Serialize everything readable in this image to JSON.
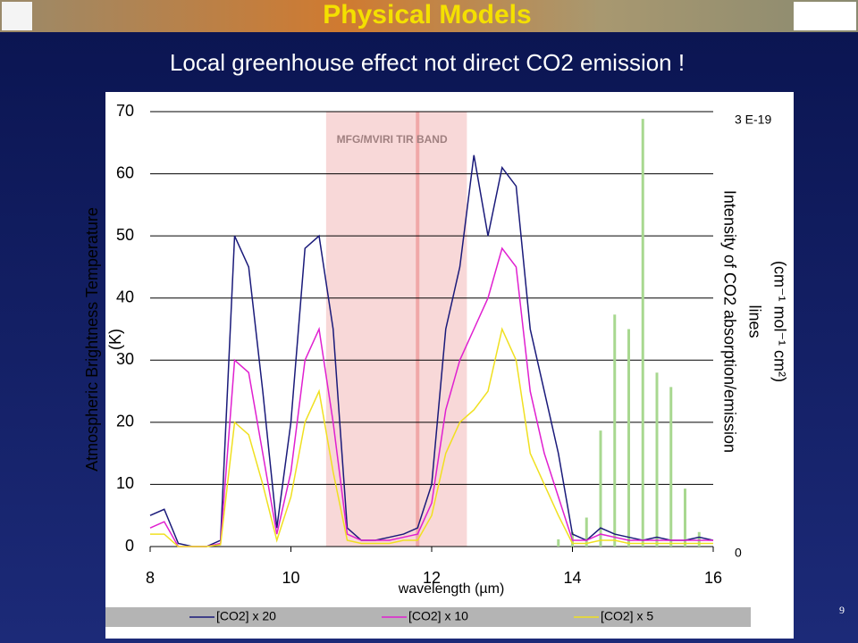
{
  "slide": {
    "title": "Physical Models",
    "subtitle": "Local greenhouse effect not direct CO2 emission !",
    "page": "9"
  },
  "chart_data": {
    "type": "line",
    "xlabel": "wavelength (µm)",
    "ylabel": [
      "Atmospheric  Brightness Temperature",
      "(K)"
    ],
    "y2label": [
      "Intensity of CO2  absorption/emission",
      "lines",
      "(cm⁻¹ mol⁻¹ cm²)"
    ],
    "xlim": [
      8,
      16
    ],
    "xticks": [
      8,
      10,
      12,
      14,
      16
    ],
    "ylim": [
      0,
      70
    ],
    "yticks": [
      0,
      10,
      20,
      30,
      40,
      50,
      60,
      70
    ],
    "y2lim": [
      0,
      3e-19
    ],
    "y2ticks": [
      0,
      {
        "value": 3e-19,
        "label": "3 E-19"
      }
    ],
    "grid": true,
    "band": {
      "label": "MFG/MVIRI TIR BAND",
      "range": [
        10.5,
        12.5
      ],
      "line": 11.8
    },
    "x": [
      8.0,
      8.2,
      8.4,
      8.6,
      8.8,
      9.0,
      9.2,
      9.4,
      9.6,
      9.8,
      10.0,
      10.2,
      10.4,
      10.6,
      10.8,
      11.0,
      11.2,
      11.4,
      11.6,
      11.8,
      12.0,
      12.2,
      12.4,
      12.6,
      12.8,
      13.0,
      13.2,
      13.4,
      13.6,
      13.8,
      14.0,
      14.2,
      14.4,
      14.6,
      14.8,
      15.0,
      15.2,
      15.4,
      15.6,
      15.8,
      16.0
    ],
    "series": [
      {
        "name": "[CO2] x 20",
        "color": "#1a1a7a",
        "values": [
          5,
          6,
          0.5,
          0,
          0,
          1,
          50,
          45,
          25,
          3,
          20,
          48,
          50,
          35,
          3,
          1,
          1,
          1.5,
          2,
          3,
          10,
          35,
          45,
          63,
          50,
          61,
          58,
          35,
          25,
          15,
          2,
          1,
          3,
          2,
          1.5,
          1,
          1.5,
          1,
          1,
          1.5,
          1
        ]
      },
      {
        "name": "[CO2] x 10",
        "color": "#e020d0",
        "values": [
          3,
          4,
          0,
          0,
          0,
          0.5,
          30,
          28,
          15,
          2,
          12,
          30,
          35,
          20,
          2,
          1,
          1,
          1,
          1.5,
          2,
          7,
          22,
          30,
          35,
          40,
          48,
          45,
          25,
          15,
          8,
          1,
          1,
          2,
          1.5,
          1,
          1,
          1,
          1,
          1,
          1,
          1
        ]
      },
      {
        "name": "[CO2] x 5",
        "color": "#f0e020",
        "values": [
          2,
          2,
          0,
          0,
          0,
          0.3,
          20,
          18,
          10,
          1,
          8,
          20,
          25,
          12,
          1,
          0.5,
          0.5,
          0.5,
          1,
          1,
          5,
          15,
          20,
          22,
          25,
          35,
          30,
          15,
          10,
          5,
          0.5,
          0.5,
          1,
          1,
          0.5,
          0.5,
          0.5,
          0.5,
          0.5,
          0.5,
          0.5
        ]
      },
      {
        "color": "#a8d890",
        "axis": "y2",
        "values": [
          0,
          0,
          0,
          0,
          0,
          0,
          0,
          0,
          0,
          0,
          0,
          0,
          0,
          0,
          0,
          0,
          0,
          0,
          0,
          0,
          0,
          0,
          0,
          0,
          0,
          0,
          0,
          0,
          0,
          5e-21,
          1e-20,
          2e-20,
          8e-20,
          1.6e-19,
          1.5e-19,
          2.95e-19,
          1.2e-19,
          1.1e-19,
          4e-20,
          1e-20,
          0
        ]
      }
    ]
  }
}
